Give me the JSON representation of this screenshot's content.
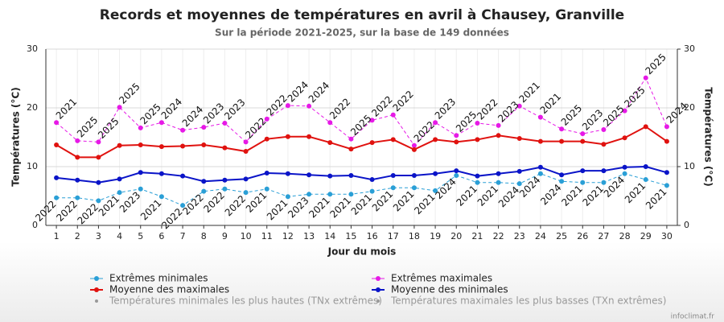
{
  "chart_data": {
    "type": "line",
    "title": "Records et moyennes de températures en avril à Chausey, Granville",
    "subtitle": "Sur la période 2021-2025, sur la base de 149 données",
    "xlabel": "Jour du mois",
    "ylabel": "Températures (°C)",
    "y2label": "Températures (°C)",
    "credit": "infoclimat.fr",
    "x": [
      1,
      2,
      3,
      4,
      5,
      6,
      7,
      8,
      9,
      10,
      11,
      12,
      13,
      14,
      15,
      16,
      17,
      18,
      19,
      20,
      21,
      22,
      23,
      24,
      25,
      26,
      27,
      28,
      29,
      30
    ],
    "xlim": [
      0.5,
      30.5
    ],
    "xticks": [
      1,
      2,
      3,
      4,
      5,
      6,
      7,
      8,
      9,
      10,
      11,
      12,
      13,
      14,
      15,
      16,
      17,
      18,
      19,
      20,
      21,
      22,
      23,
      24,
      25,
      26,
      27,
      28,
      29,
      30
    ],
    "ylim": [
      0,
      30
    ],
    "yticks": [
      0,
      10,
      20,
      30
    ],
    "y2lim": [
      0,
      30
    ],
    "y2ticks": [
      0,
      10,
      20,
      30
    ],
    "grid": true,
    "series": [
      {
        "name": "Extrêmes minimales",
        "color": "#2a9fd6",
        "dashed": true,
        "values": [
          4.7,
          4.7,
          4.2,
          5.6,
          6.2,
          4.9,
          3.4,
          5.8,
          6.2,
          5.6,
          6.2,
          4.9,
          5.3,
          5.3,
          5.3,
          5.8,
          6.4,
          6.4,
          5.9,
          8.5,
          7.3,
          7.3,
          7.1,
          8.8,
          7.5,
          7.3,
          7.3,
          8.8,
          7.8,
          6.8
        ],
        "labels": [
          "2022",
          "2022",
          "2022",
          "2021",
          "2023",
          "2021",
          "2022",
          "2022",
          "2022",
          "2022",
          "2021",
          "2021",
          "2023",
          "2021",
          "2021",
          "2021",
          "2021",
          "2021",
          "2021",
          "2024",
          "2021",
          "2021",
          "2024",
          "2024",
          "2024",
          "2021",
          "2021",
          "2024",
          "2021",
          "2021"
        ]
      },
      {
        "name": "Extrêmes maximales",
        "color": "#e619e6",
        "dashed": true,
        "values": [
          17.5,
          14.4,
          14.2,
          20.1,
          16.6,
          17.5,
          16.2,
          16.7,
          17.4,
          14.2,
          18.1,
          20.4,
          20.3,
          17.5,
          14.7,
          17.9,
          18.8,
          13.6,
          17.5,
          15.3,
          17.4,
          17.0,
          20.3,
          18.4,
          16.4,
          15.6,
          16.3,
          19.5,
          25.1,
          16.8
        ],
        "labels": [
          "2021",
          "2025",
          "2025",
          "2025",
          "2025",
          "2024",
          "2024",
          "2023",
          "2023",
          "2022",
          "2022",
          "2024",
          "2024",
          "2022",
          "2025",
          "2022",
          "2022",
          "2022",
          "2023",
          "2025",
          "2022",
          "2023",
          "2021",
          "2021",
          "2025",
          "2023",
          "2025",
          "2025",
          "2025",
          "2024"
        ]
      },
      {
        "name": "Moyenne des maximales",
        "color": "#e0120f",
        "dashed": false,
        "values": [
          13.7,
          11.6,
          11.6,
          13.6,
          13.7,
          13.4,
          13.5,
          13.7,
          13.2,
          12.6,
          14.7,
          15.1,
          15.1,
          14.1,
          13.0,
          14.1,
          14.6,
          12.9,
          14.6,
          14.2,
          14.6,
          15.3,
          14.8,
          14.3,
          14.3,
          14.3,
          13.8,
          14.9,
          16.8,
          14.3
        ]
      },
      {
        "name": "Moyenne des minimales",
        "color": "#0a14c8",
        "dashed": false,
        "values": [
          8.1,
          7.7,
          7.3,
          7.9,
          9.0,
          8.8,
          8.4,
          7.5,
          7.7,
          7.9,
          8.9,
          8.8,
          8.6,
          8.4,
          8.5,
          7.8,
          8.5,
          8.5,
          8.8,
          9.3,
          8.4,
          8.8,
          9.2,
          9.9,
          8.6,
          9.3,
          9.3,
          9.9,
          10.0,
          9.0
        ]
      }
    ],
    "legend_hidden": [
      {
        "name": "Températures minimales les plus hautes (TNx extrêmes)",
        "color": "#999999"
      },
      {
        "name": "Températures maximales les plus basses (TXn extrêmes)",
        "color": "#999999"
      }
    ]
  }
}
